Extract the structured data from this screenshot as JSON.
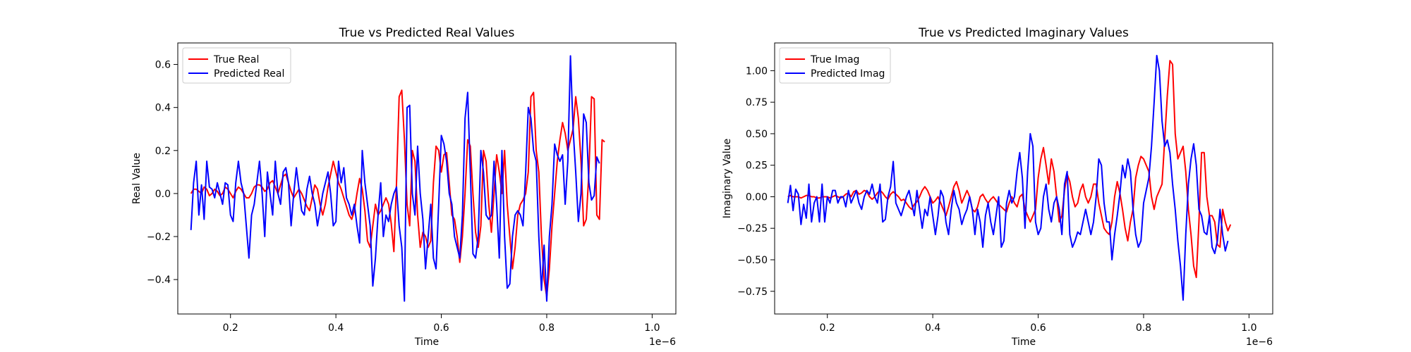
{
  "chart_data": [
    {
      "type": "line",
      "title": "True vs Predicted Real Values",
      "xlabel": "Time",
      "ylabel": "Real Value",
      "x_offset_label": "1e−6",
      "xlim": [
        0.1,
        1.045
      ],
      "ylim": [
        -0.56,
        0.7
      ],
      "xticks": [
        0.2,
        0.4,
        0.6,
        0.8,
        1.0
      ],
      "xtick_labels": [
        "0.2",
        "0.4",
        "0.6",
        "0.8",
        "1.0"
      ],
      "yticks": [
        -0.4,
        -0.2,
        0.0,
        0.2,
        0.4,
        0.6
      ],
      "ytick_labels": [
        "−0.4",
        "−0.2",
        "0.0",
        "0.2",
        "0.4",
        "0.6"
      ],
      "grid": false,
      "legend_position": "top-left",
      "x_start": 0.125,
      "x_step": 0.005,
      "series": [
        {
          "name": "True Real",
          "color": "#ff0000",
          "values": [
            0.0,
            0.02,
            0.02,
            0.01,
            0.0,
            0.03,
            0.02,
            -0.01,
            0.0,
            0.02,
            0.01,
            -0.01,
            0.0,
            0.03,
            0.02,
            0.0,
            -0.02,
            0.01,
            0.03,
            0.02,
            0.0,
            -0.02,
            -0.02,
            0.0,
            0.03,
            0.04,
            0.04,
            0.03,
            0.01,
            0.02,
            0.05,
            0.06,
            0.03,
            0.0,
            0.04,
            0.08,
            0.09,
            0.05,
            0.01,
            -0.02,
            0.0,
            0.02,
            0.0,
            -0.03,
            -0.06,
            -0.08,
            -0.02,
            0.04,
            0.02,
            -0.05,
            -0.1,
            -0.05,
            0.03,
            0.09,
            0.15,
            0.1,
            0.05,
            0.02,
            -0.02,
            -0.06,
            -0.1,
            -0.12,
            -0.08,
            0.0,
            0.07,
            0.02,
            -0.08,
            -0.22,
            -0.25,
            -0.15,
            -0.05,
            -0.1,
            -0.08,
            -0.05,
            -0.02,
            -0.05,
            -0.14,
            -0.27,
            0.05,
            0.45,
            0.48,
            0.25,
            -0.05,
            -0.15,
            0.2,
            0.15,
            -0.1,
            -0.25,
            -0.18,
            -0.2,
            -0.25,
            -0.22,
            0.05,
            0.22,
            0.2,
            0.1,
            0.18,
            0.19,
            0.05,
            -0.1,
            -0.12,
            -0.2,
            -0.32,
            -0.2,
            0.0,
            0.25,
            0.22,
            0.0,
            -0.18,
            -0.25,
            -0.15,
            0.2,
            0.15,
            -0.05,
            -0.18,
            0.0,
            0.18,
            0.1,
            0.0,
            0.2,
            -0.05,
            -0.2,
            -0.35,
            -0.25,
            -0.1,
            -0.05,
            -0.03,
            0.0,
            0.1,
            0.45,
            0.47,
            0.2,
            0.1,
            -0.2,
            -0.4,
            -0.48,
            -0.35,
            -0.15,
            0.0,
            0.15,
            0.25,
            0.33,
            0.28,
            0.2,
            0.25,
            0.3,
            0.45,
            0.35,
            0.15,
            -0.15,
            -0.12,
            0.1,
            0.45,
            0.44,
            -0.1,
            -0.12,
            0.25,
            0.24
          ]
        },
        {
          "name": "Predicted Real",
          "color": "#0000ff",
          "values": [
            -0.17,
            0.05,
            0.15,
            -0.1,
            0.04,
            -0.12,
            0.15,
            0.03,
            0.02,
            -0.02,
            0.05,
            0.0,
            -0.05,
            0.05,
            0.04,
            -0.1,
            -0.13,
            0.05,
            0.15,
            0.05,
            0.0,
            -0.15,
            -0.3,
            -0.1,
            -0.05,
            0.05,
            0.15,
            0.0,
            -0.2,
            0.1,
            0.0,
            -0.1,
            0.15,
            0.0,
            -0.05,
            0.1,
            0.12,
            0.05,
            -0.15,
            0.0,
            0.12,
            0.02,
            -0.08,
            -0.1,
            0.02,
            0.08,
            0.0,
            -0.05,
            -0.15,
            -0.08,
            0.0,
            0.05,
            0.1,
            0.0,
            -0.15,
            -0.13,
            0.15,
            0.05,
            0.12,
            -0.02,
            -0.05,
            -0.1,
            -0.05,
            -0.15,
            -0.23,
            0.2,
            0.05,
            -0.05,
            -0.15,
            -0.43,
            -0.3,
            -0.1,
            0.05,
            -0.2,
            -0.1,
            -0.13,
            -0.05,
            0.0,
            0.03,
            -0.15,
            -0.25,
            -0.5,
            0.4,
            0.41,
            0.0,
            -0.1,
            0.22,
            0.0,
            -0.12,
            -0.35,
            -0.2,
            -0.05,
            -0.3,
            -0.35,
            -0.05,
            0.27,
            0.23,
            0.15,
            0.0,
            -0.05,
            -0.2,
            -0.25,
            -0.3,
            -0.1,
            0.35,
            0.47,
            0.1,
            -0.28,
            -0.3,
            -0.2,
            0.2,
            0.1,
            -0.1,
            -0.12,
            -0.1,
            0.15,
            -0.05,
            -0.3,
            0.2,
            -0.2,
            -0.44,
            -0.42,
            -0.2,
            -0.1,
            -0.08,
            -0.1,
            -0.15,
            0.1,
            0.4,
            0.35,
            0.2,
            0.15,
            -0.2,
            -0.45,
            -0.24,
            -0.5,
            -0.2,
            -0.05,
            0.23,
            0.18,
            0.15,
            0.18,
            -0.05,
            0.15,
            0.64,
            0.3,
            0.1,
            -0.13,
            0.0,
            0.37,
            0.33,
            0.05,
            -0.03,
            -0.01,
            0.17,
            0.14
          ]
        }
      ]
    },
    {
      "type": "line",
      "title": "True vs Predicted Imaginary Values",
      "xlabel": "Time",
      "ylabel": "Imaginary Value",
      "x_offset_label": "1e−6",
      "xlim": [
        0.1,
        1.045
      ],
      "ylim": [
        -0.93,
        1.22
      ],
      "xticks": [
        0.2,
        0.4,
        0.6,
        0.8,
        1.0
      ],
      "xtick_labels": [
        "0.2",
        "0.4",
        "0.6",
        "0.8",
        "1.0"
      ],
      "yticks": [
        -0.75,
        -0.5,
        -0.25,
        0.0,
        0.25,
        0.5,
        0.75,
        1.0
      ],
      "ytick_labels": [
        "−0.75",
        "−0.50",
        "−0.25",
        "0.00",
        "0.25",
        "0.50",
        "0.75",
        "1.00"
      ],
      "grid": false,
      "legend_position": "top-left",
      "x_start": 0.125,
      "x_step": 0.005,
      "series": [
        {
          "name": "True Imag",
          "color": "#ff0000",
          "values": [
            0.0,
            0.01,
            0.0,
            0.0,
            0.0,
            -0.01,
            0.0,
            0.01,
            0.01,
            0.0,
            0.0,
            -0.01,
            -0.01,
            0.0,
            0.0,
            0.0,
            -0.01,
            0.0,
            0.01,
            0.0,
            -0.01,
            0.0,
            0.02,
            0.03,
            0.0,
            0.04,
            0.05,
            0.02,
            0.03,
            0.05,
            0.04,
            0.0,
            -0.02,
            0.0,
            0.03,
            0.05,
            0.03,
            0.0,
            -0.02,
            0.02,
            0.04,
            0.02,
            0.0,
            -0.03,
            -0.02,
            -0.05,
            -0.08,
            -0.1,
            -0.06,
            -0.04,
            0.0,
            0.05,
            0.08,
            0.05,
            0.0,
            -0.05,
            -0.03,
            0.0,
            -0.05,
            -0.1,
            -0.15,
            -0.08,
            0.0,
            0.08,
            0.12,
            0.05,
            -0.05,
            0.0,
            0.05,
            0.0,
            -0.1,
            -0.12,
            -0.08,
            0.0,
            0.02,
            -0.02,
            -0.05,
            -0.02,
            0.0,
            -0.03,
            -0.06,
            -0.08,
            -0.1,
            -0.12,
            -0.05,
            0.0,
            -0.05,
            -0.08,
            0.0,
            0.02,
            -0.1,
            -0.15,
            -0.2,
            -0.15,
            -0.1,
            0.15,
            0.3,
            0.39,
            0.25,
            0.1,
            0.3,
            0.2,
            0.0,
            -0.2,
            -0.15,
            0.05,
            0.18,
            0.12,
            0.0,
            -0.08,
            -0.05,
            0.05,
            0.1,
            0.0,
            -0.05,
            0.0,
            0.1,
            0.1,
            -0.05,
            -0.15,
            -0.25,
            -0.28,
            -0.3,
            -0.2,
            0.0,
            0.12,
            0.03,
            -0.1,
            -0.25,
            -0.35,
            -0.2,
            -0.1,
            0.15,
            0.25,
            0.32,
            0.3,
            0.25,
            0.2,
            0.0,
            -0.1,
            0.0,
            0.05,
            0.1,
            0.45,
            0.8,
            1.08,
            1.05,
            0.5,
            0.3,
            0.35,
            0.4,
            0.2,
            -0.1,
            -0.3,
            -0.55,
            -0.64,
            -0.2,
            0.35,
            0.35,
            0.0,
            -0.15,
            -0.15,
            -0.2,
            -0.38,
            -0.4,
            -0.1,
            -0.2,
            -0.27,
            -0.22
          ]
        },
        {
          "name": "Predicted Imag",
          "color": "#0000ff",
          "values": [
            -0.05,
            0.09,
            -0.11,
            0.06,
            0.02,
            -0.22,
            -0.06,
            -0.17,
            0.1,
            -0.2,
            -0.05,
            0.0,
            -0.2,
            0.1,
            -0.2,
            0.0,
            -0.05,
            0.05,
            0.05,
            -0.05,
            0.0,
            0.0,
            -0.08,
            0.05,
            -0.05,
            0.0,
            0.05,
            -0.05,
            -0.1,
            0.0,
            0.05,
            0.02,
            0.1,
            0.0,
            -0.05,
            0.1,
            -0.2,
            -0.18,
            0.0,
            0.08,
            0.28,
            -0.05,
            -0.1,
            -0.15,
            -0.08,
            0.0,
            0.05,
            -0.05,
            -0.15,
            0.05,
            -0.1,
            -0.25,
            -0.1,
            -0.15,
            0.0,
            -0.15,
            -0.3,
            -0.15,
            0.05,
            0.0,
            -0.2,
            -0.3,
            -0.1,
            0.05,
            -0.05,
            -0.1,
            -0.22,
            -0.15,
            -0.1,
            0.0,
            -0.1,
            -0.3,
            -0.1,
            -0.2,
            -0.4,
            -0.15,
            -0.05,
            -0.2,
            -0.3,
            -0.15,
            0.0,
            -0.4,
            -0.35,
            -0.05,
            0.05,
            -0.05,
            0.0,
            0.2,
            0.35,
            0.15,
            -0.25,
            0.2,
            0.5,
            0.4,
            -0.2,
            -0.3,
            -0.25,
            0.0,
            0.1,
            -0.1,
            -0.2,
            -0.05,
            0.0,
            -0.1,
            -0.3,
            0.1,
            0.2,
            -0.3,
            -0.4,
            -0.35,
            -0.28,
            -0.3,
            -0.2,
            -0.1,
            -0.2,
            -0.3,
            -0.2,
            0.0,
            0.3,
            0.25,
            -0.05,
            -0.2,
            -0.2,
            -0.5,
            -0.3,
            -0.15,
            0.02,
            0.25,
            0.15,
            0.3,
            0.2,
            -0.1,
            -0.3,
            -0.4,
            -0.35,
            -0.05,
            0.05,
            0.15,
            0.4,
            0.75,
            1.12,
            1.0,
            0.6,
            0.4,
            0.45,
            0.35,
            0.1,
            -0.1,
            -0.35,
            -0.55,
            -0.82,
            -0.3,
            0.1,
            0.3,
            0.42,
            0.25,
            -0.1,
            -0.15,
            -0.28,
            -0.3,
            -0.15,
            -0.4,
            -0.45,
            -0.35,
            -0.1,
            -0.3,
            -0.43,
            -0.35
          ]
        }
      ]
    }
  ]
}
